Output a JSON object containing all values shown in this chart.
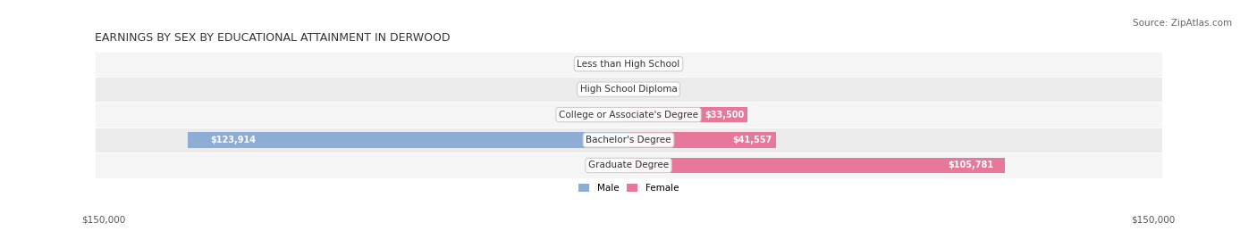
{
  "title": "EARNINGS BY SEX BY EDUCATIONAL ATTAINMENT IN DERWOOD",
  "source": "Source: ZipAtlas.com",
  "categories": [
    "Less than High School",
    "High School Diploma",
    "College or Associate's Degree",
    "Bachelor's Degree",
    "Graduate Degree"
  ],
  "male_values": [
    0,
    0,
    0,
    123914,
    0
  ],
  "female_values": [
    0,
    0,
    33500,
    41557,
    105781
  ],
  "male_color": "#8eadd4",
  "female_color": "#e8789a",
  "male_label": "Male",
  "female_label": "Female",
  "axis_max": 150000,
  "bar_bg_color": "#e8e8e8",
  "row_bg_colors": [
    "#f0f0f0",
    "#e8e8e8"
  ],
  "label_left": "$150,000",
  "label_right": "$150,000",
  "title_fontsize": 9,
  "source_fontsize": 7.5,
  "label_fontsize": 7.5,
  "bar_label_fontsize": 7,
  "category_fontsize": 7.5
}
